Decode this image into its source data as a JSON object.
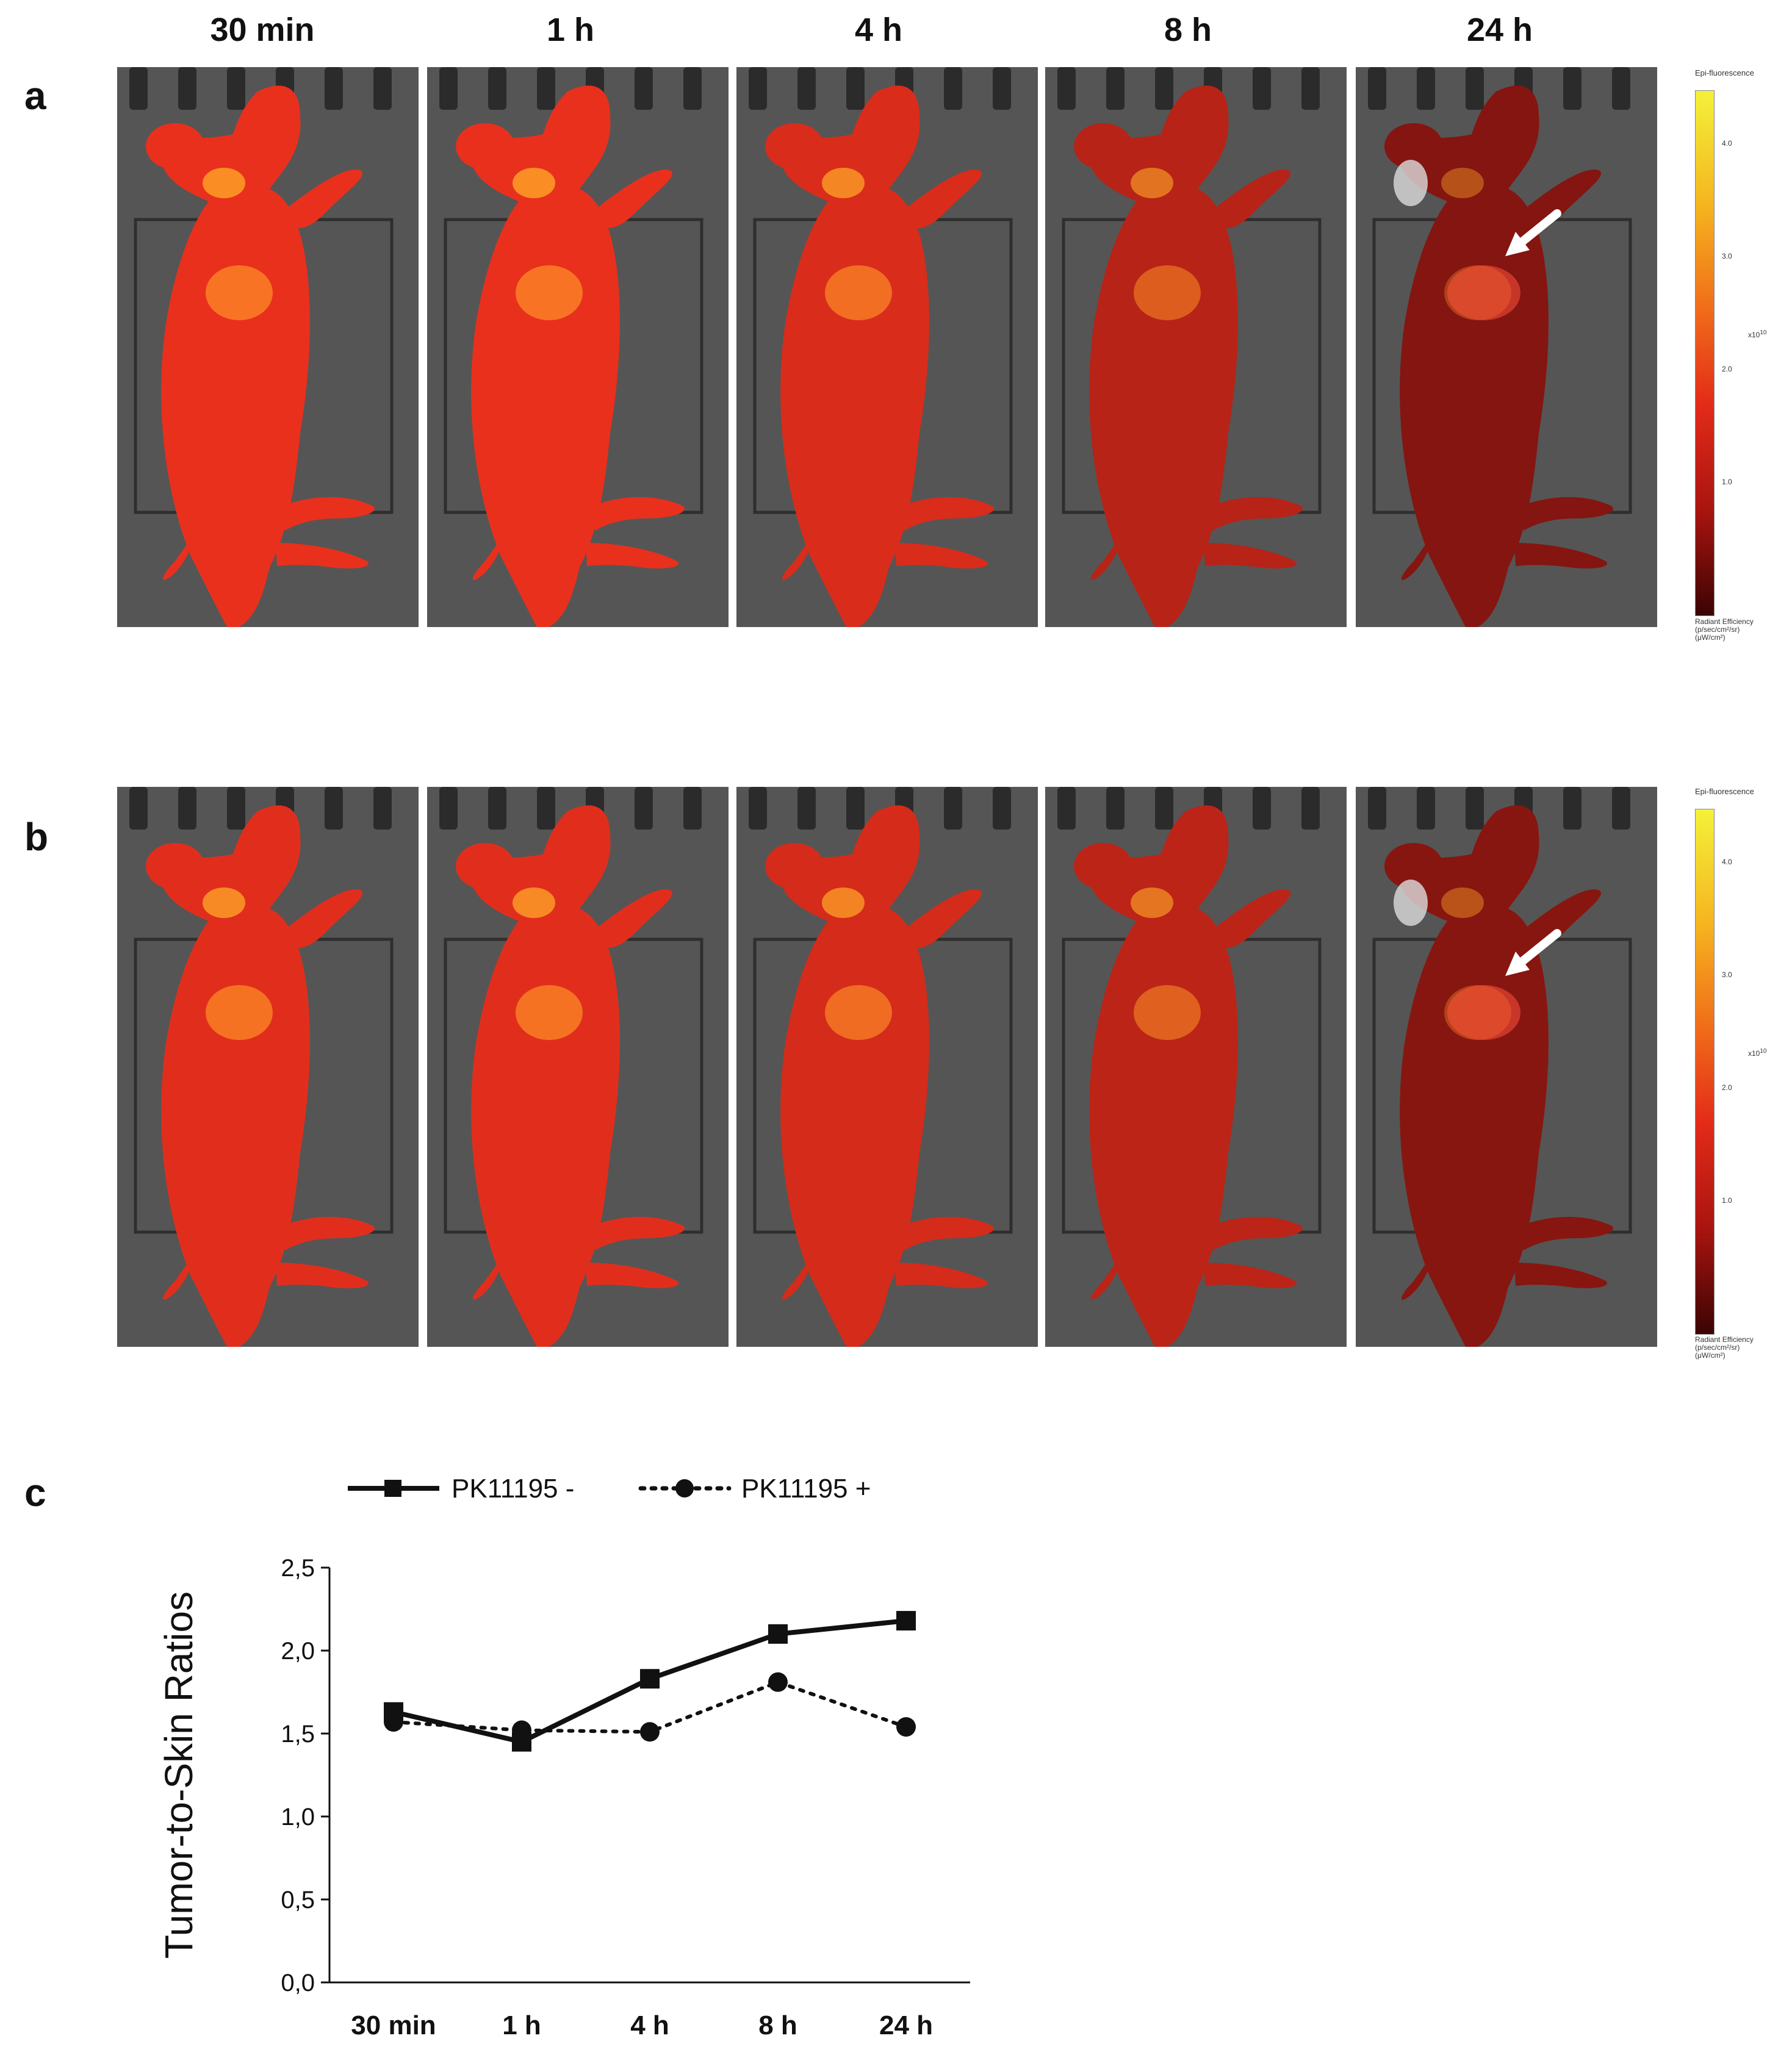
{
  "panels": {
    "a": "a",
    "b": "b",
    "c": "c"
  },
  "time_headers": [
    "30 min",
    "1 h",
    "4 h",
    "8 h",
    "24 h"
  ],
  "colorbar": {
    "title": "Epi-fluorescence",
    "ticks": [
      "4.0",
      "3.0",
      "2.0",
      "1.0"
    ],
    "scale": "x10",
    "scale_exp": "10",
    "footer_line1": "Radiant Efficiency",
    "footer_line2": "(p/sec/cm²/sr)",
    "footer_line3": "(μW/cm²)"
  },
  "intensity": {
    "row_a": [
      0.95,
      0.95,
      0.85,
      0.62,
      0.28
    ],
    "row_b": [
      0.9,
      0.9,
      0.82,
      0.65,
      0.3
    ]
  },
  "chart_data": {
    "type": "line",
    "title": "",
    "xlabel": "",
    "ylabel": "Tumor-to-Skin Ratios",
    "categories": [
      "30 min",
      "1 h",
      "4 h",
      "8 h",
      "24 h"
    ],
    "ylim": [
      0.0,
      2.5
    ],
    "yticks": [
      "0,0",
      "0,5",
      "1,0",
      "1,5",
      "2,0",
      "2,5"
    ],
    "legend_position": "top",
    "series": [
      {
        "name": "PK11195 -",
        "marker": "square",
        "line": "solid",
        "values": [
          1.63,
          1.45,
          1.83,
          2.1,
          2.18
        ]
      },
      {
        "name": "PK11195 +",
        "marker": "circle",
        "line": "dotted",
        "values": [
          1.57,
          1.52,
          1.51,
          1.81,
          1.54
        ]
      }
    ]
  }
}
